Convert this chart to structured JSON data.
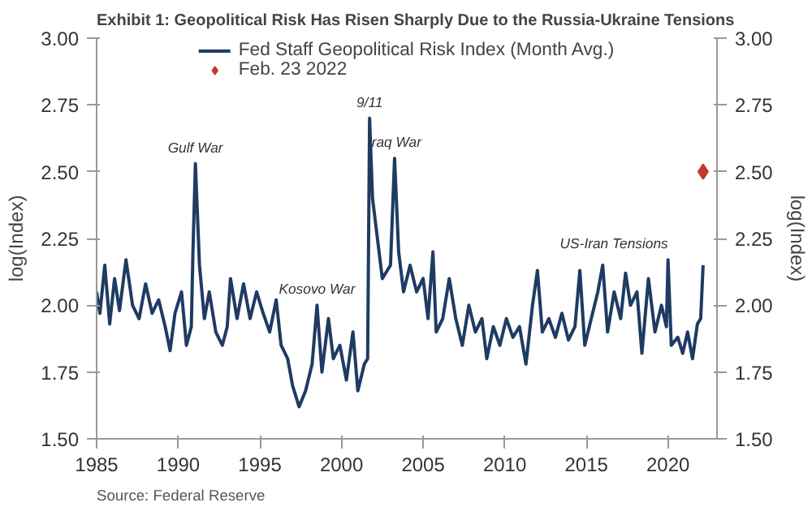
{
  "chart_data": {
    "type": "line",
    "title": "Exhibit 1: Geopolitical Risk Has Risen Sharply Due to the Russia-Ukraine Tensions",
    "ylabel": "log(Index)",
    "y2label": "log(Index)",
    "xlim": [
      1985,
      2023
    ],
    "xticks": [
      1985,
      1990,
      1995,
      2000,
      2005,
      2010,
      2015,
      2020
    ],
    "ylim": [
      1.5,
      3.0
    ],
    "yticks": [
      {
        "value": 1.5,
        "label": "1.50"
      },
      {
        "value": 1.75,
        "label": "1.75"
      },
      {
        "value": 2.0,
        "label": "2.00"
      },
      {
        "value": 2.25,
        "label": "2.25"
      },
      {
        "value": 2.5,
        "label": "2.50"
      },
      {
        "value": 2.75,
        "label": "2.75"
      },
      {
        "value": 3.0,
        "label": "3.00"
      }
    ],
    "y2lim": [
      1.5,
      3.0
    ],
    "y2ticks": [
      {
        "value": 1.5,
        "label": "1.50"
      },
      {
        "value": 1.75,
        "label": "1.75"
      },
      {
        "value": 2.0,
        "label": "2.00"
      },
      {
        "value": 2.25,
        "label": "2.25"
      },
      {
        "value": 2.5,
        "label": "2.50"
      },
      {
        "value": 2.75,
        "label": "2.75"
      },
      {
        "value": 3.0,
        "label": "3.00"
      }
    ],
    "grid": false,
    "legend": "top",
    "line_style": "solid",
    "series": [
      {
        "name": "Fed Staff Geopolitical Risk Index (Month Avg.)",
        "color": "#1f3b63",
        "marker": "none",
        "x": [
          1985.0,
          1985.2,
          1985.5,
          1985.8,
          1986.1,
          1986.4,
          1986.8,
          1987.2,
          1987.6,
          1988.0,
          1988.4,
          1988.8,
          1989.2,
          1989.5,
          1989.8,
          1990.2,
          1990.5,
          1990.8,
          1990.9,
          1991.05,
          1991.3,
          1991.6,
          1991.9,
          1992.3,
          1992.7,
          1993.0,
          1993.2,
          1993.6,
          1994.0,
          1994.4,
          1994.8,
          1995.2,
          1995.6,
          1996.0,
          1996.3,
          1996.7,
          1997.0,
          1997.4,
          1997.8,
          1998.2,
          1998.5,
          1998.8,
          1999.2,
          1999.5,
          1999.9,
          2000.3,
          2000.7,
          2001.0,
          2001.4,
          2001.6,
          2001.72,
          2001.9,
          2002.2,
          2002.5,
          2003.0,
          2003.25,
          2003.5,
          2003.8,
          2004.2,
          2004.6,
          2005.0,
          2005.3,
          2005.6,
          2005.8,
          2006.2,
          2006.6,
          2007.0,
          2007.4,
          2007.8,
          2008.2,
          2008.6,
          2008.9,
          2009.3,
          2009.7,
          2010.1,
          2010.5,
          2010.9,
          2011.3,
          2011.7,
          2012.0,
          2012.3,
          2012.7,
          2013.1,
          2013.5,
          2013.9,
          2014.3,
          2014.6,
          2014.9,
          2015.3,
          2015.7,
          2016.0,
          2016.3,
          2016.7,
          2017.1,
          2017.4,
          2017.7,
          2018.1,
          2018.4,
          2018.8,
          2019.2,
          2019.6,
          2019.9,
          2020.0,
          2020.2,
          2020.6,
          2020.9,
          2021.2,
          2021.5,
          2021.8,
          2022.0,
          2022.15
        ],
        "values": [
          2.05,
          1.97,
          2.15,
          1.93,
          2.1,
          1.98,
          2.17,
          2.0,
          1.95,
          2.08,
          1.97,
          2.02,
          1.92,
          1.83,
          1.97,
          2.05,
          1.85,
          1.92,
          2.2,
          2.53,
          2.15,
          1.95,
          2.05,
          1.9,
          1.85,
          1.92,
          2.1,
          1.95,
          2.08,
          1.95,
          2.05,
          1.97,
          1.9,
          2.02,
          1.85,
          1.8,
          1.7,
          1.62,
          1.68,
          1.78,
          2.0,
          1.75,
          1.95,
          1.8,
          1.85,
          1.72,
          1.9,
          1.68,
          1.78,
          1.8,
          2.7,
          2.4,
          2.25,
          2.1,
          2.15,
          2.55,
          2.2,
          2.05,
          2.15,
          2.05,
          2.1,
          1.95,
          2.2,
          1.9,
          1.95,
          2.1,
          1.95,
          1.85,
          2.0,
          1.9,
          1.95,
          1.8,
          1.92,
          1.85,
          1.95,
          1.88,
          1.92,
          1.78,
          2.0,
          2.13,
          1.9,
          1.95,
          1.88,
          1.97,
          1.87,
          1.92,
          2.13,
          1.85,
          1.95,
          2.05,
          2.15,
          1.9,
          2.05,
          1.95,
          2.12,
          2.0,
          2.05,
          1.82,
          2.1,
          1.9,
          2.0,
          1.92,
          2.17,
          1.85,
          1.88,
          1.82,
          1.9,
          1.8,
          1.93,
          1.95,
          2.15
        ]
      },
      {
        "name": "Feb. 23 2022",
        "type": "scatter",
        "color": "#c0392b",
        "marker": "diamond",
        "x": [
          2022.15
        ],
        "values": [
          2.5
        ]
      }
    ],
    "annotations": [
      {
        "text": "Gulf War",
        "x": 1991.05,
        "y": 2.53
      },
      {
        "text": "9/11",
        "x": 2001.72,
        "y": 2.7
      },
      {
        "text": "Iraq War",
        "x": 2003.25,
        "y": 2.55
      },
      {
        "text": "Kosovo War",
        "x": 1998.5,
        "y": 2.0
      },
      {
        "text": "US-Iran Tensions",
        "x": 2020.0,
        "y": 2.17
      },
      "Source: Federal Reserve"
    ]
  }
}
